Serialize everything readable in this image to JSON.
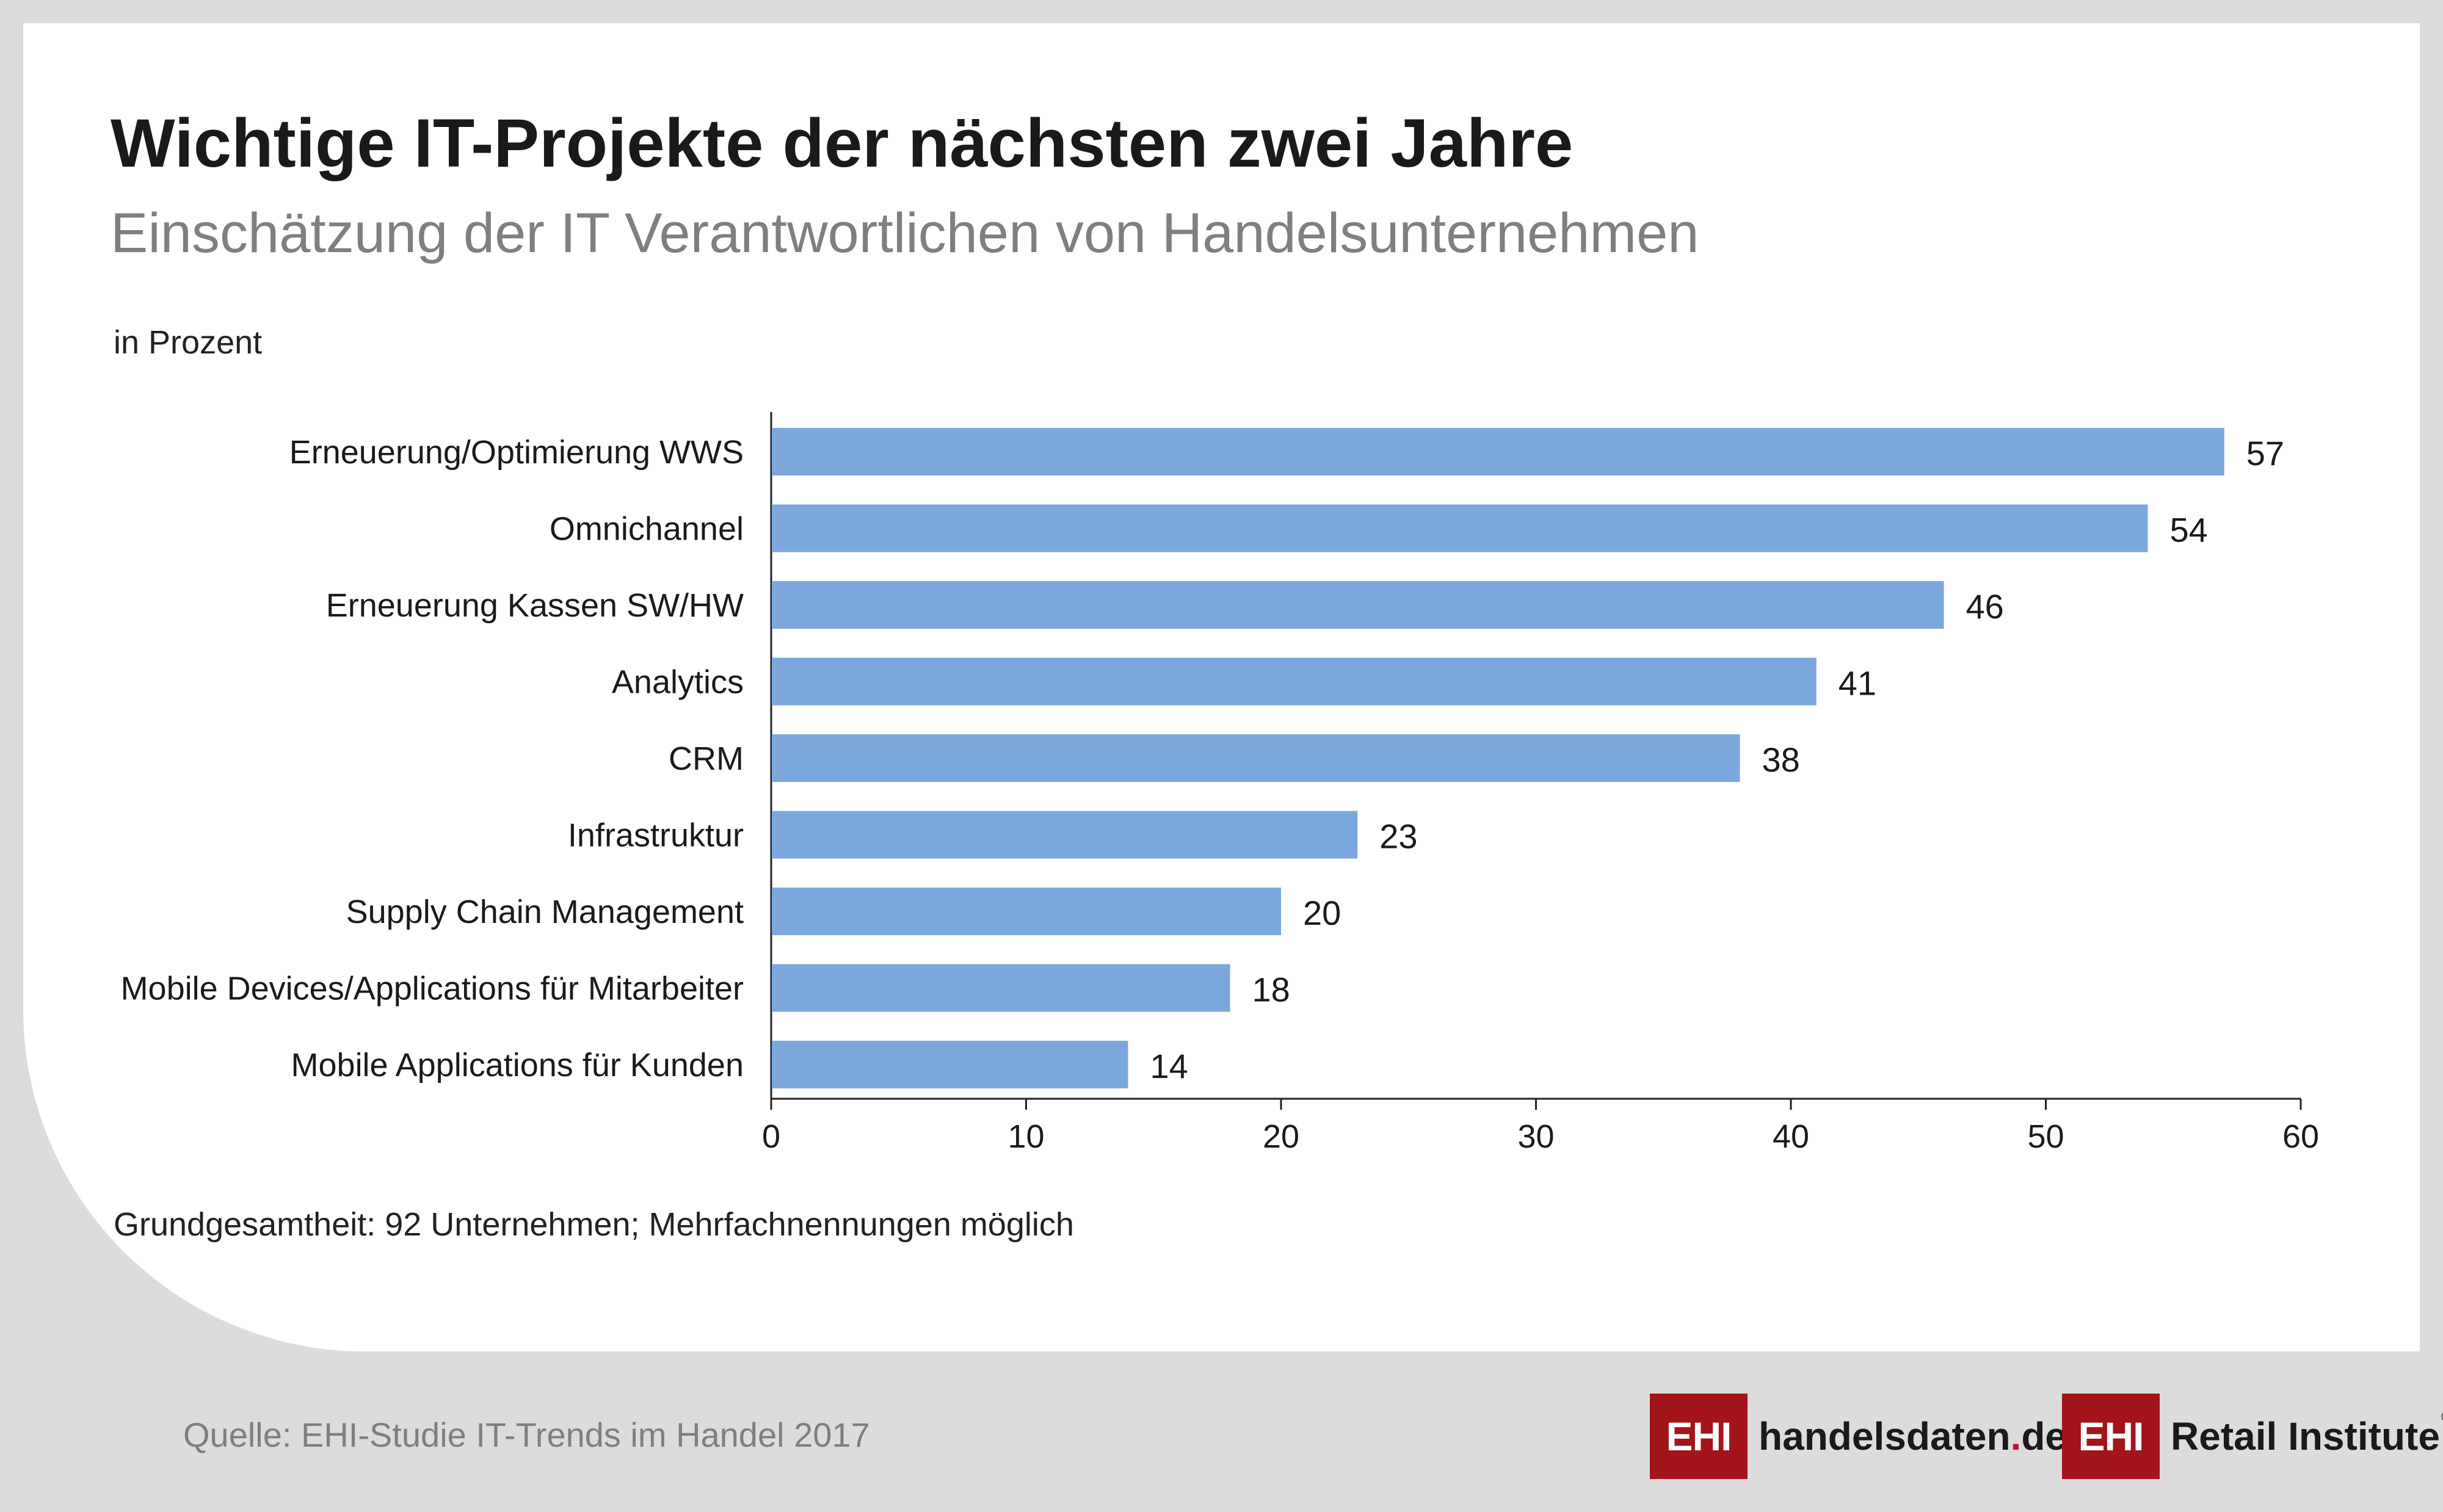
{
  "header": {
    "title": "Wichtige IT-Projekte der nächsten zwei Jahre",
    "subtitle": "Einschätzung der IT Verantwortlichen von Handelsunternehmen",
    "unit": "in Prozent"
  },
  "chart_data": {
    "type": "bar",
    "orientation": "horizontal",
    "categories": [
      "Erneuerung/Optimierung WWS",
      "Omnichannel",
      "Erneuerung Kassen SW/HW",
      "Analytics",
      "CRM",
      "Infrastruktur",
      "Supply Chain Management",
      "Mobile Devices/Applications für Mitarbeiter",
      "Mobile Applications für Kunden"
    ],
    "values": [
      57,
      54,
      46,
      41,
      38,
      23,
      20,
      18,
      14
    ],
    "xlim": [
      0,
      60
    ],
    "xticks": [
      0,
      10,
      20,
      30,
      40,
      50,
      60
    ],
    "bar_color": "#7ba7dc",
    "grid": false
  },
  "footer": {
    "note": "Grundgesamtheit: 92 Unternehmen; Mehrfachnennungen möglich",
    "source": "Quelle: EHI-Studie IT-Trends im Handel 2017"
  },
  "logos": {
    "handelsdaten": {
      "box": "EHI",
      "name": "handelsdaten",
      "dot": ".",
      "suffix": "de"
    },
    "retail": {
      "box": "EHI",
      "name": "Retail Institute",
      "reg": "®"
    }
  },
  "colors": {
    "background": "#dcdcdc",
    "card": "#ffffff",
    "logo_red": "#a3141b"
  }
}
